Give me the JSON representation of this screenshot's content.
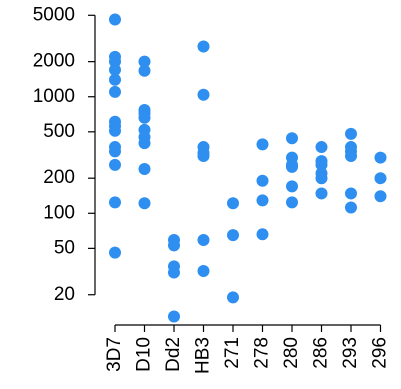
{
  "chart_data": {
    "type": "strip",
    "categories": [
      "3D7",
      "D10",
      "Dd2",
      "HB3",
      "271",
      "278",
      "280",
      "286",
      "293",
      "296"
    ],
    "values": [
      [
        4600,
        2200,
        2000,
        1700,
        1400,
        1100,
        610,
        560,
        510,
        370,
        340,
        260,
        124,
        46
      ],
      [
        2000,
        1670,
        770,
        720,
        660,
        520,
        450,
        400,
        240,
        122
      ],
      [
        59,
        53,
        35,
        31,
        13
      ],
      [
        2700,
        1040,
        370,
        330,
        310,
        59,
        32
      ],
      [
        122,
        65,
        19
      ],
      [
        390,
        190,
        129,
        66
      ],
      [
        440,
        300,
        260,
        250,
        170,
        124
      ],
      [
        370,
        280,
        260,
        220,
        200,
        148
      ],
      [
        480,
        370,
        340,
        310,
        148,
        112
      ],
      [
        300,
        200,
        140
      ]
    ],
    "color": "#2e8ff0",
    "ylog": true,
    "ylim": [
      11,
      6500
    ],
    "yticks": [
      20,
      50,
      100,
      200,
      500,
      1000,
      2000,
      5000
    ],
    "grid": false
  }
}
